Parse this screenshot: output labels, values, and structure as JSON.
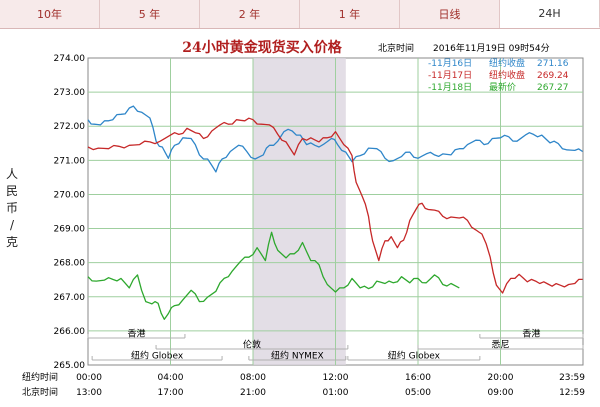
{
  "tabs": [
    {
      "label": "10年"
    },
    {
      "label": "5 年"
    },
    {
      "label": "2 年"
    },
    {
      "label": "1 年"
    },
    {
      "label": "日线"
    },
    {
      "label": "24H"
    }
  ],
  "active_tab": 5,
  "header": {
    "title": "24小时黄金现货买入价格",
    "time_label": "北京时间",
    "timestamp": "2016年11月19日 09时54分"
  },
  "chart_data": {
    "type": "line",
    "title": "24小时黄金现货买入价格",
    "ylabel": "人民币/克",
    "ylim": [
      265,
      274
    ],
    "yticks": [
      "274.00",
      "273.00",
      "272.00",
      "271.00",
      "270.00",
      "269.00",
      "268.00",
      "267.00",
      "266.00",
      "265.00"
    ],
    "xlim": [
      0,
      24
    ],
    "grid": true,
    "x_ticks_ny": [
      "00:00",
      "04:00",
      "08:00",
      "12:00",
      "16:00",
      "20:00",
      "23:59"
    ],
    "x_ticks_bj": [
      "13:00",
      "17:00",
      "21:00",
      "01:00",
      "05:00",
      "09:00",
      "12:59"
    ],
    "x_row_labels": [
      "纽约时间",
      "北京时间"
    ],
    "series": [
      {
        "name": "11月16日",
        "legend_prefix": "-11月16日",
        "stat_label": "纽约收盘",
        "stat_value": "271.16",
        "color": "#2f86c9",
        "points": [
          [
            0,
            272.15
          ],
          [
            0.3,
            272.1
          ],
          [
            0.6,
            272.0
          ],
          [
            1.0,
            272.2
          ],
          [
            1.4,
            272.3
          ],
          [
            1.8,
            272.4
          ],
          [
            2.2,
            272.55
          ],
          [
            2.6,
            272.45
          ],
          [
            3.0,
            272.2
          ],
          [
            3.3,
            271.6
          ],
          [
            3.6,
            271.35
          ],
          [
            3.9,
            271.1
          ],
          [
            4.2,
            271.4
          ],
          [
            4.6,
            271.7
          ],
          [
            5.0,
            271.6
          ],
          [
            5.4,
            271.2
          ],
          [
            5.8,
            271.0
          ],
          [
            6.2,
            270.7
          ],
          [
            6.5,
            271.0
          ],
          [
            6.9,
            271.3
          ],
          [
            7.3,
            271.4
          ],
          [
            7.7,
            271.3
          ],
          [
            8.1,
            271.0
          ],
          [
            8.5,
            271.2
          ],
          [
            8.8,
            271.4
          ],
          [
            9.2,
            271.6
          ],
          [
            9.5,
            271.8
          ],
          [
            9.9,
            271.9
          ],
          [
            10.3,
            271.7
          ],
          [
            10.6,
            271.5
          ],
          [
            11.0,
            271.4
          ],
          [
            11.4,
            271.5
          ],
          [
            11.8,
            271.6
          ],
          [
            12.1,
            271.5
          ],
          [
            12.5,
            271.2
          ],
          [
            12.8,
            271.0
          ],
          [
            13.2,
            271.1
          ],
          [
            13.6,
            271.4
          ],
          [
            14.0,
            271.3
          ],
          [
            14.4,
            271.1
          ],
          [
            14.8,
            270.95
          ],
          [
            15.2,
            271.15
          ],
          [
            15.6,
            271.2
          ],
          [
            16.0,
            271.1
          ],
          [
            16.4,
            271.15
          ],
          [
            16.8,
            271.2
          ],
          [
            17.2,
            271.15
          ],
          [
            17.6,
            271.2
          ],
          [
            18.0,
            271.3
          ],
          [
            18.4,
            271.5
          ],
          [
            18.8,
            271.55
          ],
          [
            19.2,
            271.5
          ],
          [
            19.6,
            271.6
          ],
          [
            20.0,
            271.7
          ],
          [
            20.4,
            271.65
          ],
          [
            20.8,
            271.6
          ],
          [
            21.2,
            271.7
          ],
          [
            21.6,
            271.8
          ],
          [
            22.0,
            271.7
          ],
          [
            22.4,
            271.55
          ],
          [
            22.8,
            271.45
          ],
          [
            23.2,
            271.35
          ],
          [
            23.6,
            271.25
          ],
          [
            23.98,
            271.3
          ]
        ]
      },
      {
        "name": "11月17日",
        "legend_prefix": "-11月17日",
        "stat_label": "纽约收盘",
        "stat_value": "269.24",
        "color": "#c62828",
        "points": [
          [
            0,
            271.35
          ],
          [
            0.5,
            271.4
          ],
          [
            1.0,
            271.3
          ],
          [
            1.5,
            271.45
          ],
          [
            2.0,
            271.4
          ],
          [
            2.5,
            271.5
          ],
          [
            3.0,
            271.5
          ],
          [
            3.5,
            271.6
          ],
          [
            4.0,
            271.7
          ],
          [
            4.4,
            271.8
          ],
          [
            4.8,
            271.9
          ],
          [
            5.2,
            271.85
          ],
          [
            5.6,
            271.6
          ],
          [
            6.0,
            271.9
          ],
          [
            6.4,
            272.0
          ],
          [
            6.8,
            272.1
          ],
          [
            7.2,
            272.15
          ],
          [
            7.6,
            272.2
          ],
          [
            8.0,
            272.15
          ],
          [
            8.4,
            272.1
          ],
          [
            8.8,
            272.0
          ],
          [
            9.2,
            271.8
          ],
          [
            9.6,
            271.5
          ],
          [
            10.0,
            271.2
          ],
          [
            10.4,
            271.6
          ],
          [
            10.8,
            271.7
          ],
          [
            11.2,
            271.5
          ],
          [
            11.6,
            271.7
          ],
          [
            12.0,
            271.8
          ],
          [
            12.4,
            271.5
          ],
          [
            12.8,
            271.1
          ],
          [
            13.0,
            270.4
          ],
          [
            13.3,
            269.9
          ],
          [
            13.6,
            269.4
          ],
          [
            13.8,
            268.6
          ],
          [
            14.1,
            268.1
          ],
          [
            14.4,
            268.6
          ],
          [
            14.7,
            268.8
          ],
          [
            15.0,
            268.4
          ],
          [
            15.3,
            268.7
          ],
          [
            15.6,
            269.2
          ],
          [
            15.9,
            269.6
          ],
          [
            16.2,
            269.7
          ],
          [
            16.5,
            269.6
          ],
          [
            16.8,
            269.5
          ],
          [
            17.2,
            269.4
          ],
          [
            17.6,
            269.3
          ],
          [
            18.0,
            269.35
          ],
          [
            18.4,
            269.2
          ],
          [
            18.8,
            269.0
          ],
          [
            19.1,
            268.8
          ],
          [
            19.5,
            268.2
          ],
          [
            19.8,
            267.3
          ],
          [
            20.1,
            267.15
          ],
          [
            20.5,
            267.5
          ],
          [
            20.9,
            267.7
          ],
          [
            21.3,
            267.4
          ],
          [
            21.7,
            267.5
          ],
          [
            22.1,
            267.4
          ],
          [
            22.5,
            267.35
          ],
          [
            22.9,
            267.3
          ],
          [
            23.3,
            267.4
          ],
          [
            23.6,
            267.35
          ],
          [
            23.98,
            267.55
          ]
        ]
      },
      {
        "name": "11月18日",
        "legend_prefix": "-11月18日",
        "stat_label": "最新价",
        "stat_value": "267.27",
        "color": "#2ea82e",
        "points": [
          [
            0,
            267.55
          ],
          [
            0.4,
            267.5
          ],
          [
            0.8,
            267.45
          ],
          [
            1.2,
            267.55
          ],
          [
            1.6,
            267.5
          ],
          [
            2.0,
            267.3
          ],
          [
            2.4,
            267.6
          ],
          [
            2.8,
            266.9
          ],
          [
            3.1,
            266.75
          ],
          [
            3.4,
            266.85
          ],
          [
            3.7,
            266.3
          ],
          [
            3.9,
            266.55
          ],
          [
            4.2,
            266.7
          ],
          [
            4.6,
            266.95
          ],
          [
            5.0,
            267.15
          ],
          [
            5.4,
            266.9
          ],
          [
            5.8,
            266.95
          ],
          [
            6.2,
            267.2
          ],
          [
            6.6,
            267.5
          ],
          [
            7.0,
            267.8
          ],
          [
            7.4,
            268.0
          ],
          [
            7.8,
            268.2
          ],
          [
            8.2,
            268.4
          ],
          [
            8.6,
            268.1
          ],
          [
            8.9,
            268.85
          ],
          [
            9.2,
            268.4
          ],
          [
            9.6,
            268.1
          ],
          [
            10.0,
            268.3
          ],
          [
            10.4,
            268.55
          ],
          [
            10.8,
            268.1
          ],
          [
            11.2,
            267.9
          ],
          [
            11.6,
            267.4
          ],
          [
            12.0,
            267.1
          ],
          [
            12.4,
            267.3
          ],
          [
            12.8,
            267.5
          ],
          [
            13.2,
            267.3
          ],
          [
            13.6,
            267.2
          ],
          [
            14.0,
            267.5
          ],
          [
            14.4,
            267.35
          ],
          [
            14.8,
            267.45
          ],
          [
            15.2,
            267.55
          ],
          [
            15.6,
            267.45
          ],
          [
            16.0,
            267.5
          ],
          [
            16.4,
            267.45
          ],
          [
            16.8,
            267.6
          ],
          [
            17.2,
            267.4
          ],
          [
            17.6,
            267.35
          ],
          [
            18.0,
            267.3
          ]
        ]
      }
    ],
    "session_markers": [
      {
        "label": "香港",
        "start": 0,
        "end": 4.7,
        "row": 0
      },
      {
        "label": "伦敦",
        "start": 3.3,
        "end": 12.6,
        "row": 1
      },
      {
        "label": "纽约 Globex",
        "start": 0.2,
        "end": 6.5,
        "row": 2
      },
      {
        "label": "纽约 NYMEX",
        "start": 7.8,
        "end": 12.5,
        "row": 2
      },
      {
        "label": "纽约 Globex",
        "start": 12.6,
        "end": 19.0,
        "row": 2
      },
      {
        "label": "香港",
        "start": 19.0,
        "end": 24.0,
        "row": 0
      },
      {
        "label": "悉尼",
        "start": 16.0,
        "end": 24.0,
        "row": 1
      }
    ],
    "highlight_band": [
      8.0,
      12.5
    ]
  }
}
